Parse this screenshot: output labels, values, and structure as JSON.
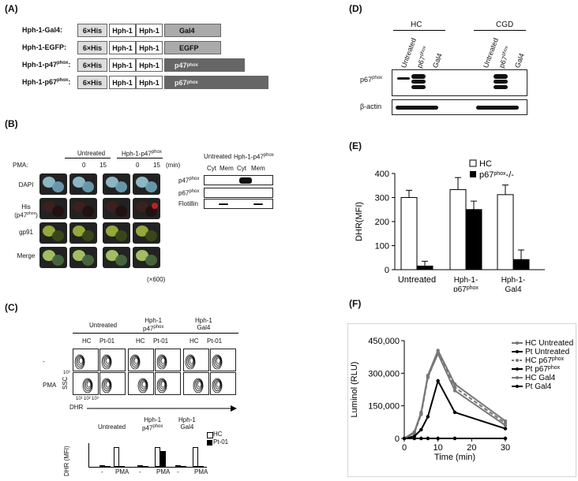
{
  "panelA": {
    "label": "(A)",
    "rows": [
      {
        "name": "Hph-1-Gal4:",
        "tag": "6×His",
        "h1": "Hph-1",
        "h2": "Hph-1",
        "cargo": "Gal4"
      },
      {
        "name": "Hph-1-EGFP:",
        "tag": "6×His",
        "h1": "Hph-1",
        "h2": "Hph-1",
        "cargo": "EGFP"
      },
      {
        "name": "Hph-1-p47phox:",
        "tag": "6×His",
        "h1": "Hph-1",
        "h2": "Hph-1",
        "cargo": "p47phox"
      },
      {
        "name": "Hph-1-p67phox:",
        "tag": "6×His",
        "h1": "Hph-1",
        "h2": "Hph-1",
        "cargo": "p67phox"
      }
    ]
  },
  "panelB": {
    "label": "(B)",
    "group1": "Untreated",
    "group2": "Hph-1-p47phox",
    "pma_label": "PMA:",
    "times": [
      "0",
      "15",
      "0",
      "15"
    ],
    "unit": "(min)",
    "rows": [
      "DAPI",
      "His (p47phox)",
      "gp91",
      "Merge"
    ],
    "magnification": "(×600)",
    "wb_groups": [
      "Untreated",
      "Hph-1-p47phox"
    ],
    "wb_fractions": [
      "Cyt",
      "Mem",
      "Cyt",
      "Mem"
    ],
    "wb_rows": [
      "p47phox",
      "p67phox",
      "Flotillin"
    ]
  },
  "panelC": {
    "label": "(C)",
    "groups": [
      "Untreated",
      "Hph-1 p47phox",
      "Hph-1 Gal4"
    ],
    "subjects": [
      "HC",
      "Pt-01",
      "HC",
      "Pt-01",
      "HC",
      "Pt-01"
    ],
    "row_labels": [
      "-",
      "PMA"
    ],
    "y_axis": "SSC",
    "y_tick": "10³",
    "x_axis": "DHR",
    "x_ticks": [
      "10¹",
      "10²",
      "10³"
    ],
    "bar_ylabel": "DHR (MFI)",
    "bar_groups": [
      "Untreated",
      "Hph-1 p47phox",
      "Hph-1 Gal4"
    ],
    "bar_xlabels": [
      "-",
      "PMA",
      "-",
      "PMA",
      "-",
      "PMA"
    ],
    "legend": [
      "HC",
      "Pt-01"
    ]
  },
  "panelD": {
    "label": "(D)",
    "groups": [
      "HC",
      "CGD"
    ],
    "lanes": [
      "Untreated",
      "p67phox",
      "Gal4",
      "Untreated",
      "p67phox",
      "Gal4"
    ],
    "rows": [
      "p67phox",
      "β-actin"
    ]
  },
  "panelE": {
    "label": "(E)"
  },
  "panelF": {
    "label": "(F)"
  },
  "chart_data": [
    {
      "type": "bar",
      "panel": "E",
      "categories": [
        "Untreated",
        "Hph-1-p67phox",
        "Hph-1-Gal4"
      ],
      "series": [
        {
          "name": "HC",
          "values": [
            300,
            333,
            312
          ],
          "errors": [
            30,
            50,
            40
          ],
          "color": "#ffffff"
        },
        {
          "name": "p67phox-/-",
          "values": [
            15,
            250,
            42
          ],
          "errors": [
            20,
            35,
            40
          ],
          "color": "#000000"
        }
      ],
      "ylabel": "DHR(MFI)",
      "ylim": [
        0,
        400
      ],
      "yticks": [
        0,
        100,
        200,
        300,
        400
      ]
    },
    {
      "type": "line",
      "panel": "F",
      "x": [
        0,
        3,
        5,
        7,
        10,
        15,
        30
      ],
      "series": [
        {
          "name": "HC Untreated",
          "values": [
            0,
            30000,
            120000,
            290000,
            405000,
            250000,
            80000
          ],
          "style": "solid-gray"
        },
        {
          "name": "Pt Untreated",
          "values": [
            0,
            0,
            0,
            0,
            0,
            0,
            0
          ],
          "style": "solid-black"
        },
        {
          "name": "HC p67phox",
          "values": [
            0,
            25000,
            110000,
            280000,
            395000,
            235000,
            70000
          ],
          "style": "dashed-gray"
        },
        {
          "name": "Pt p67phox",
          "values": [
            0,
            10000,
            40000,
            100000,
            265000,
            120000,
            45000
          ],
          "style": "solid-black"
        },
        {
          "name": "HC Gal4",
          "values": [
            0,
            28000,
            115000,
            285000,
            390000,
            220000,
            60000
          ],
          "style": "solid-gray"
        },
        {
          "name": "Pt Gal4",
          "values": [
            0,
            0,
            0,
            0,
            0,
            0,
            0
          ],
          "style": "solid-black"
        }
      ],
      "xlabel": "Time (min)",
      "ylabel": "Luminol (RLU)",
      "xlim": [
        0,
        30
      ],
      "xticks": [
        0,
        10,
        20,
        30
      ],
      "ylim": [
        0,
        450000
      ],
      "yticks": [
        "0",
        "150,000",
        "300,000",
        "450,000"
      ]
    }
  ]
}
